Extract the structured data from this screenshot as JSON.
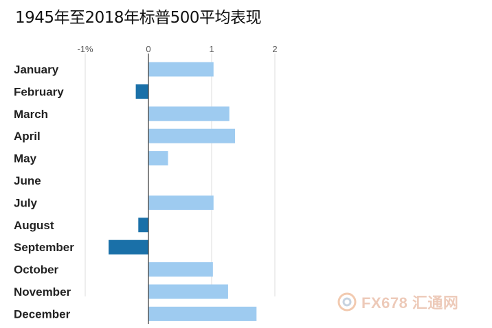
{
  "title": "1945年至2018年标普500平均表现",
  "watermark": {
    "text": "FX678 汇通网"
  },
  "colors": {
    "positive": "#9ecbf0",
    "negative": "#1a70a8",
    "axis": "#333333",
    "grid": "#dddddd"
  },
  "chart_data": {
    "type": "bar",
    "orientation": "horizontal",
    "title": "1945年至2018年标普500平均表现",
    "categories": [
      "January",
      "February",
      "March",
      "April",
      "May",
      "June",
      "July",
      "August",
      "September",
      "October",
      "November",
      "December"
    ],
    "values": [
      1.03,
      -0.2,
      1.28,
      1.37,
      0.31,
      0.0,
      1.03,
      -0.16,
      -0.63,
      1.02,
      1.26,
      1.71
    ],
    "xticks": [
      "-1%",
      "0",
      "1",
      "2"
    ],
    "xtick_values": [
      -1,
      0,
      1,
      2
    ],
    "xlim": [
      -1,
      2
    ],
    "grid": true,
    "xlabel": "",
    "ylabel": ""
  }
}
